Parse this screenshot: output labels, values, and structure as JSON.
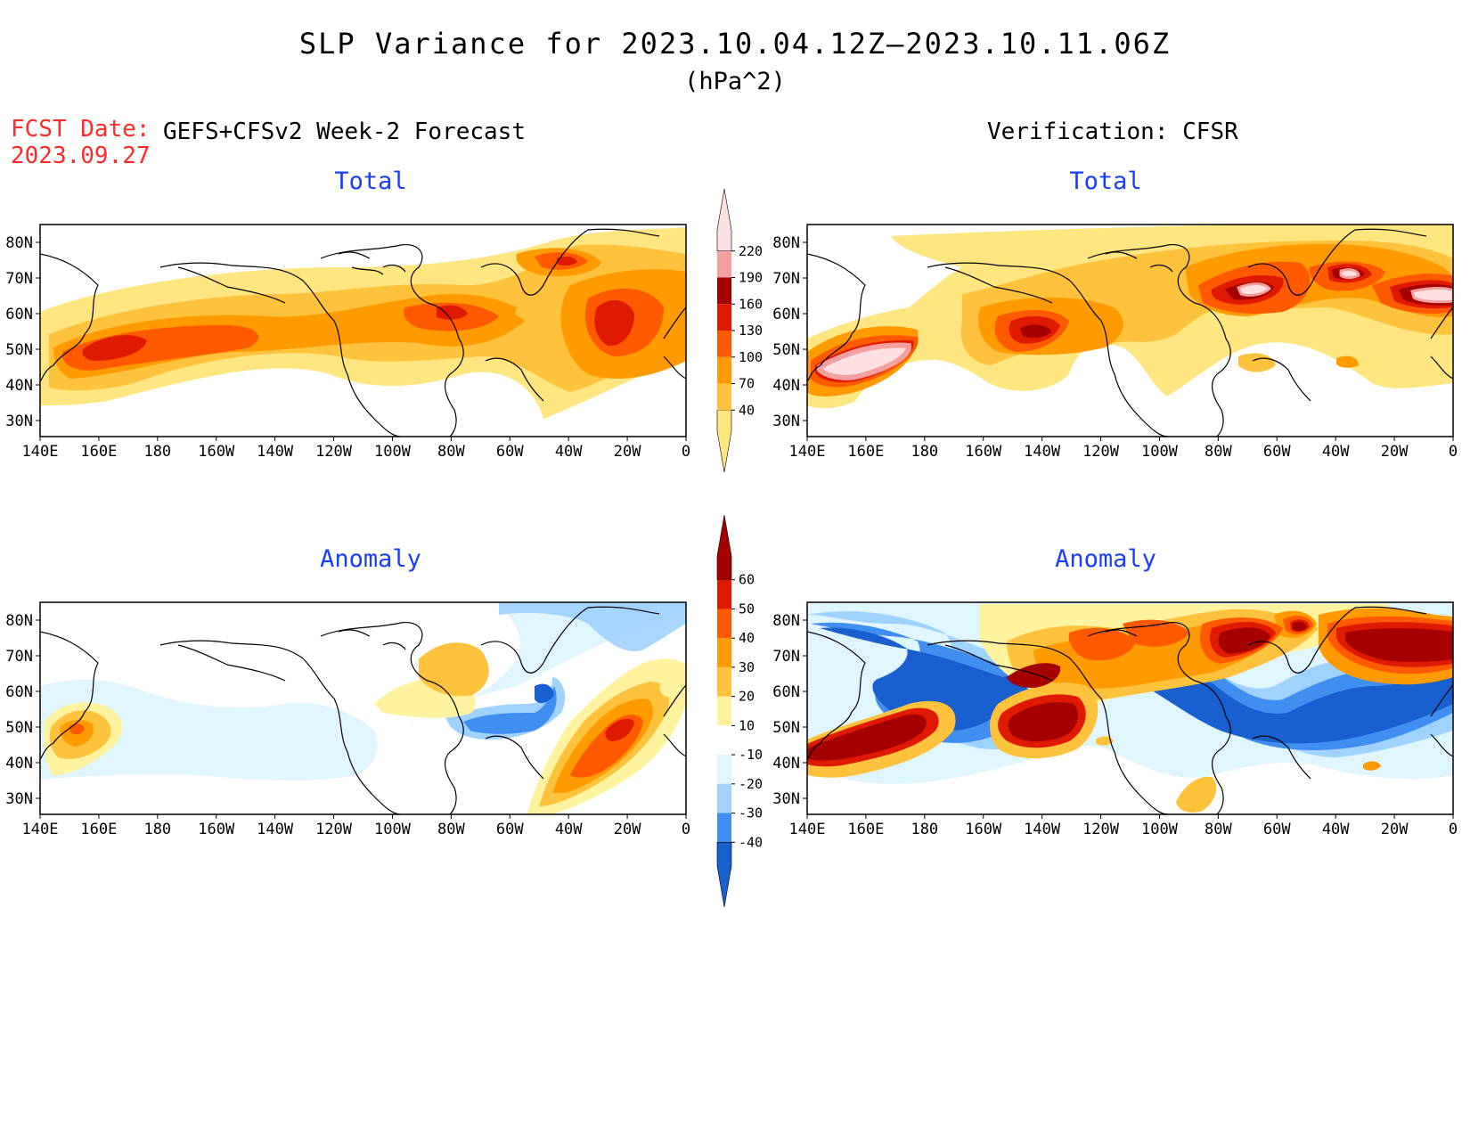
{
  "title": "SLP Variance for 2023.10.04.12Z–2023.10.11.06Z",
  "units": "(hPa^2)",
  "forecast_date": {
    "label": "FCST Date:",
    "value": "2023.09.27"
  },
  "left_header": "GEFS+CFSv2 Week-2 Forecast",
  "right_header": "Verification: CFSR",
  "panels": [
    {
      "title": "Total"
    },
    {
      "title": "Total"
    },
    {
      "title": "Anomaly"
    },
    {
      "title": "Anomaly"
    }
  ],
  "axes": {
    "lon_labels": [
      "140E",
      "160E",
      "180",
      "160W",
      "140W",
      "120W",
      "100W",
      "80W",
      "60W",
      "40W",
      "20W",
      "0"
    ],
    "lat_labels": [
      "80N",
      "70N",
      "60N",
      "50N",
      "40N",
      "30N"
    ]
  },
  "colorbar_total": {
    "levels": [
      "40",
      "70",
      "100",
      "130",
      "160",
      "190",
      "220"
    ],
    "colors": [
      "#ffe680",
      "#ffc23d",
      "#ff9a00",
      "#ff5a00",
      "#e01a00",
      "#a50000",
      "#f5a0a0",
      "#fde0e0"
    ]
  },
  "colorbar_anomaly": {
    "levels": [
      "60",
      "50",
      "40",
      "30",
      "20",
      "10",
      "-10",
      "-20",
      "-30",
      "-40"
    ],
    "colors": [
      "#a50000",
      "#e01a00",
      "#ff5a00",
      "#ff9a00",
      "#ffc23d",
      "#fff3a0",
      "#ffffff",
      "#dff6ff",
      "#9fd2ff",
      "#3f8ef0",
      "#1a5fd0"
    ]
  },
  "chart_data": [
    {
      "type": "heatmap",
      "panel": "forecast-total",
      "title": "Total",
      "value_range": [
        40,
        220
      ]
    },
    {
      "type": "heatmap",
      "panel": "verification-total",
      "title": "Total",
      "value_range": [
        40,
        220
      ]
    },
    {
      "type": "heatmap",
      "panel": "forecast-anomaly",
      "title": "Anomaly",
      "value_range": [
        -40,
        60
      ]
    },
    {
      "type": "heatmap",
      "panel": "verification-anomaly",
      "title": "Anomaly",
      "value_range": [
        -40,
        60
      ]
    }
  ]
}
